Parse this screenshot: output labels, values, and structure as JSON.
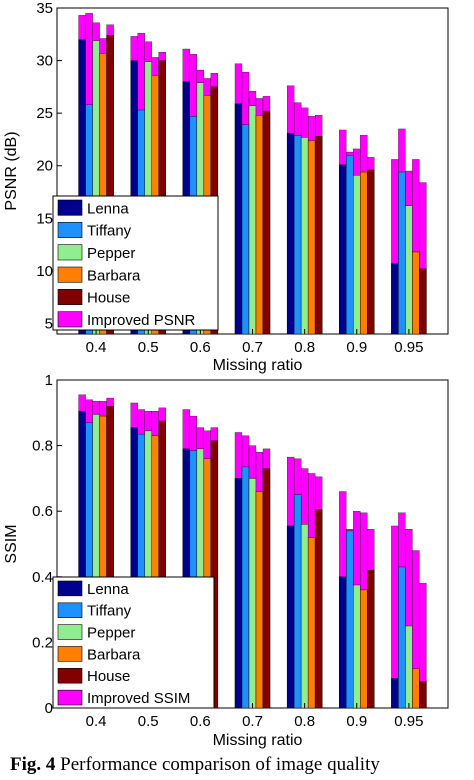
{
  "figure": {
    "caption_label": "Fig. 4",
    "caption_text": "Performance comparison of image quality"
  },
  "colors": {
    "Lenna": "#00008f",
    "Tiffany": "#1e90ff",
    "Pepper": "#90ee90",
    "Barbara": "#ff7f00",
    "House": "#800000",
    "Improved": "#ff00ff"
  },
  "chart_data": [
    {
      "type": "bar",
      "stacked_improvement": true,
      "categories": [
        "0.4",
        "0.5",
        "0.6",
        "0.7",
        "0.8",
        "0.9",
        "0.95"
      ],
      "series": [
        {
          "name": "Lenna",
          "values": [
            32.0,
            30.0,
            28.0,
            25.9,
            23.1,
            20.1,
            10.7
          ],
          "improved": [
            34.3,
            32.3,
            31.1,
            29.7,
            27.6,
            23.4,
            20.6
          ]
        },
        {
          "name": "Tiffany",
          "values": [
            25.8,
            25.3,
            24.7,
            23.9,
            22.9,
            21.0,
            19.4
          ],
          "improved": [
            34.5,
            32.6,
            30.6,
            28.9,
            26.0,
            21.3,
            23.5
          ]
        },
        {
          "name": "Pepper",
          "values": [
            31.9,
            29.9,
            27.9,
            25.7,
            22.7,
            19.1,
            16.2
          ],
          "improved": [
            33.6,
            31.8,
            29.1,
            27.1,
            25.5,
            21.6,
            19.5
          ]
        },
        {
          "name": "Barbara",
          "values": [
            30.7,
            28.6,
            26.7,
            24.8,
            22.4,
            19.4,
            11.8
          ],
          "improved": [
            32.1,
            30.3,
            28.3,
            26.4,
            24.7,
            22.9,
            20.6
          ]
        },
        {
          "name": "House",
          "values": [
            32.4,
            30.0,
            27.5,
            25.2,
            22.8,
            19.6,
            10.2
          ],
          "improved": [
            33.4,
            30.8,
            28.8,
            26.6,
            24.8,
            20.8,
            18.4
          ]
        }
      ],
      "legend": [
        "Lenna",
        "Tiffany",
        "Pepper",
        "Barbara",
        "House",
        "Improved PSNR"
      ],
      "legend_position": "bottom-left",
      "xlabel": "Missing ratio",
      "ylabel": "PSNR (dB)",
      "ylim": [
        4,
        35
      ],
      "yticks": [
        5,
        10,
        15,
        20,
        25,
        30,
        35
      ],
      "grid": false
    },
    {
      "type": "bar",
      "stacked_improvement": true,
      "categories": [
        "0.4",
        "0.5",
        "0.6",
        "0.7",
        "0.8",
        "0.9",
        "0.95"
      ],
      "series": [
        {
          "name": "Lenna",
          "values": [
            0.905,
            0.855,
            0.79,
            0.7,
            0.555,
            0.4,
            0.09
          ],
          "improved": [
            0.955,
            0.93,
            0.91,
            0.84,
            0.765,
            0.66,
            0.555
          ]
        },
        {
          "name": "Tiffany",
          "values": [
            0.87,
            0.835,
            0.785,
            0.735,
            0.65,
            0.54,
            0.43
          ],
          "improved": [
            0.94,
            0.91,
            0.89,
            0.83,
            0.76,
            0.545,
            0.595
          ]
        },
        {
          "name": "Pepper",
          "values": [
            0.895,
            0.845,
            0.79,
            0.7,
            0.56,
            0.375,
            0.25
          ],
          "improved": [
            0.935,
            0.905,
            0.855,
            0.8,
            0.73,
            0.6,
            0.545
          ]
        },
        {
          "name": "Barbara",
          "values": [
            0.89,
            0.83,
            0.76,
            0.66,
            0.52,
            0.36,
            0.12
          ],
          "improved": [
            0.935,
            0.905,
            0.845,
            0.78,
            0.715,
            0.595,
            0.48
          ]
        },
        {
          "name": "House",
          "values": [
            0.92,
            0.875,
            0.815,
            0.73,
            0.605,
            0.42,
            0.08
          ],
          "improved": [
            0.945,
            0.915,
            0.855,
            0.79,
            0.705,
            0.545,
            0.38
          ]
        }
      ],
      "legend": [
        "Lenna",
        "Tiffany",
        "Pepper",
        "Barbara",
        "House",
        "Improved SSIM"
      ],
      "legend_position": "bottom-left",
      "xlabel": "Missing ratio",
      "ylabel": "SSIM",
      "ylim": [
        0,
        1
      ],
      "yticks": [
        0,
        0.2,
        0.4,
        0.6,
        0.8,
        1
      ],
      "grid": false
    }
  ]
}
